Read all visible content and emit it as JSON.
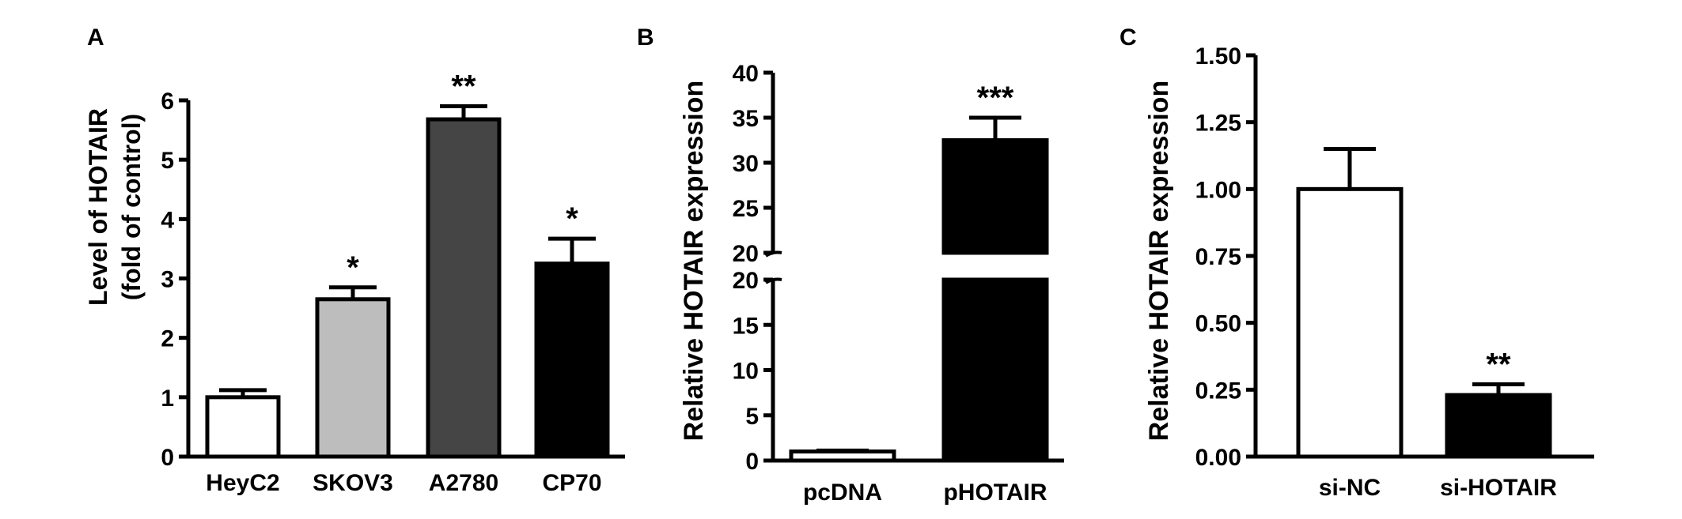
{
  "chart_data": [
    {
      "panel_label": "A",
      "type": "bar",
      "categories": [
        "HeyC2",
        "SKOV3",
        "A2780",
        "CP70"
      ],
      "values": [
        1.0,
        2.65,
        5.68,
        3.25
      ],
      "errors": [
        0.12,
        0.2,
        0.22,
        0.42
      ],
      "significance": [
        "",
        "*",
        "**",
        "*"
      ],
      "bar_colors": [
        "#ffffff",
        "#bdbdbd",
        "#454545",
        "#000000"
      ],
      "ylabel_line1": "Level of HOTAIR",
      "ylabel_line2": "(fold of control)",
      "ylim": [
        0,
        6
      ],
      "yticks": [
        "0",
        "1",
        "2",
        "3",
        "4",
        "5",
        "6"
      ],
      "grid": false,
      "legend": "none"
    },
    {
      "panel_label": "B",
      "type": "bar",
      "categories": [
        "pcDNA",
        "pHOTAIR"
      ],
      "values": [
        1.0,
        32.5
      ],
      "errors": [
        0.1,
        2.5
      ],
      "significance": [
        "",
        "***"
      ],
      "bar_colors": [
        "#ffffff",
        "#000000"
      ],
      "ylabel": "Relative HOTAIR expression",
      "broken_axis": true,
      "lower_ylim": [
        0,
        20
      ],
      "upper_ylim": [
        20,
        40
      ],
      "lower_yticks": [
        "0",
        "5",
        "10",
        "15",
        "20"
      ],
      "upper_yticks": [
        "20",
        "25",
        "30",
        "35",
        "40"
      ],
      "grid": false,
      "legend": "none"
    },
    {
      "panel_label": "C",
      "type": "bar",
      "categories": [
        "si-NC",
        "si-HOTAIR"
      ],
      "values": [
        1.0,
        0.23
      ],
      "errors": [
        0.15,
        0.04
      ],
      "significance": [
        "",
        "**"
      ],
      "bar_colors": [
        "#ffffff",
        "#000000"
      ],
      "ylabel": "Relative HOTAIR expression",
      "ylim": [
        0,
        1.5
      ],
      "yticks": [
        "0.00",
        "0.25",
        "0.50",
        "0.75",
        "1.00",
        "1.25",
        "1.50"
      ],
      "grid": false,
      "legend": "none"
    }
  ]
}
